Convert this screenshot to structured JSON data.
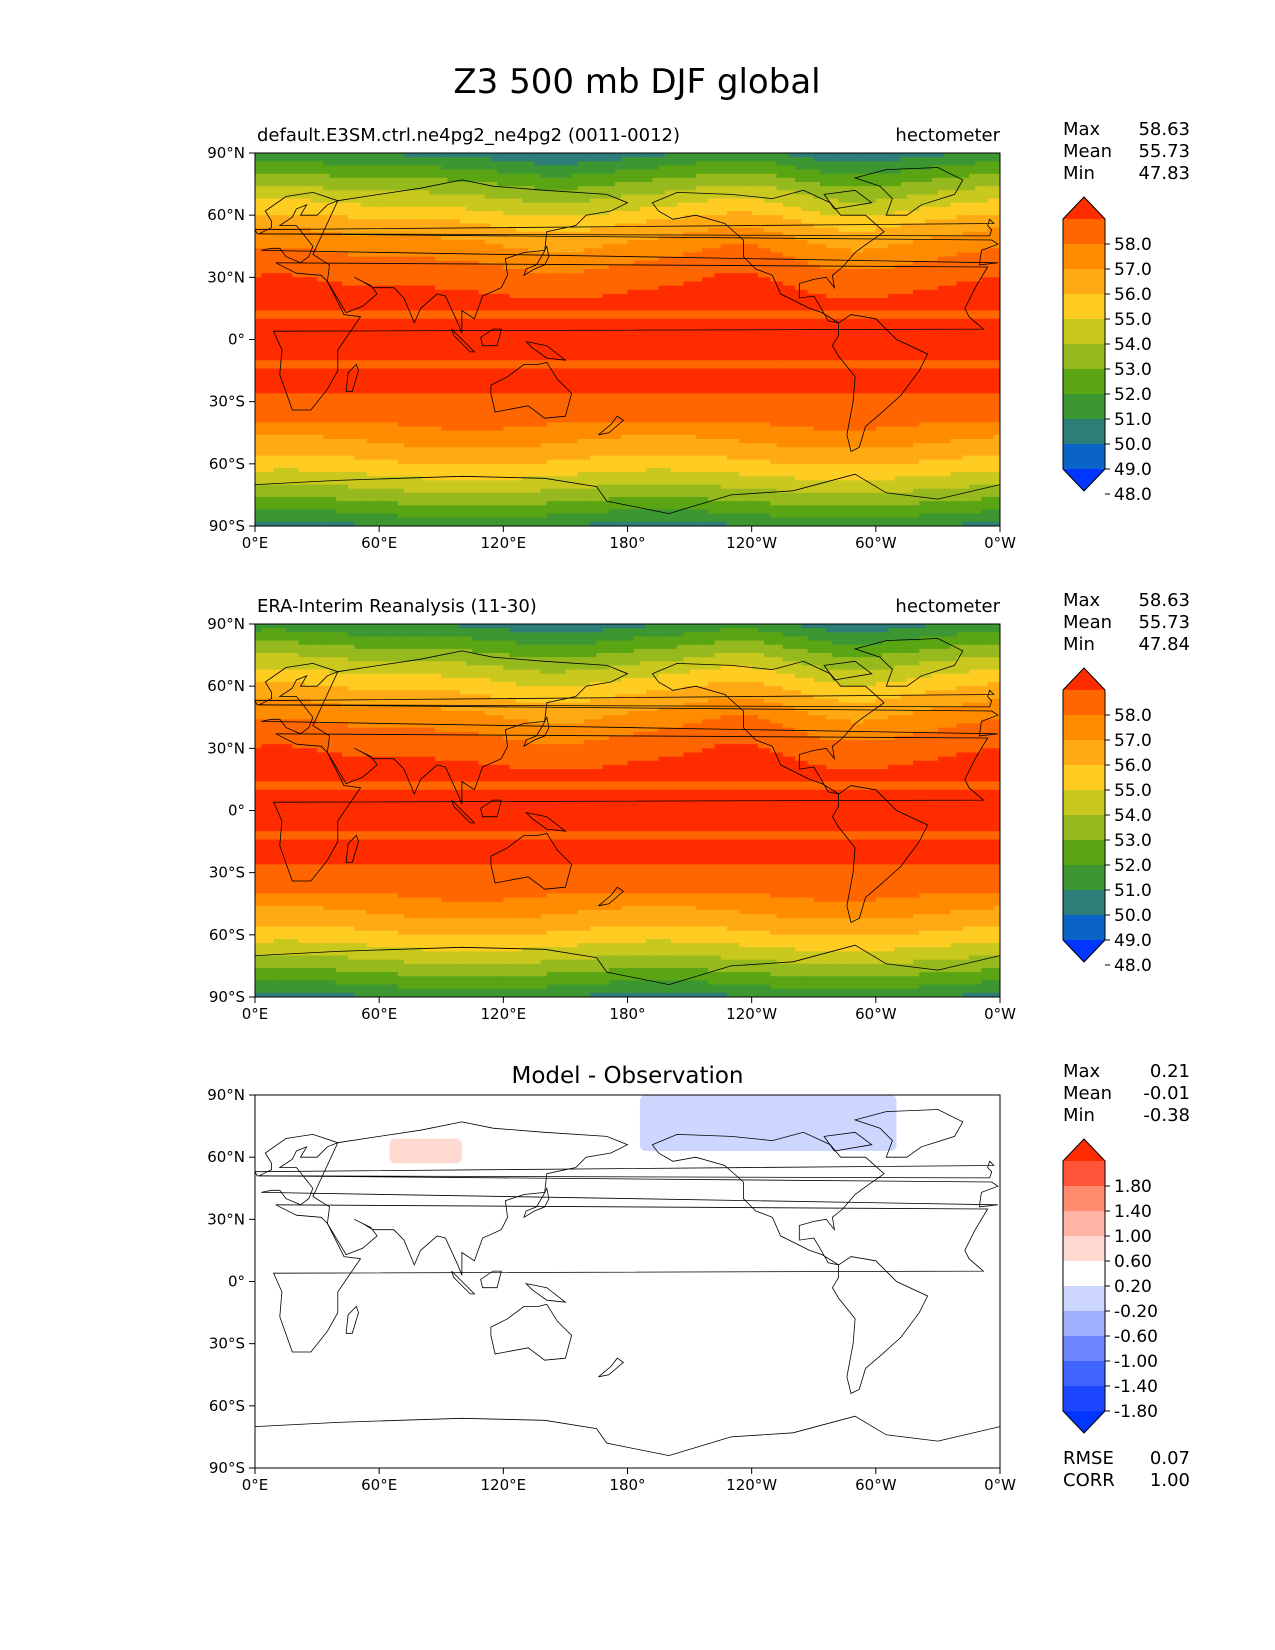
{
  "chart_data": {
    "type": "heatmap",
    "title": "Z3 500 mb DJF global",
    "x_ticks": [
      "0°E",
      "60°E",
      "120°E",
      "180°",
      "120°W",
      "60°W",
      "0°W"
    ],
    "y_ticks": [
      "90°N",
      "60°N",
      "30°N",
      "0°",
      "30°S",
      "60°S",
      "90°S"
    ],
    "x_range_deg_east": [
      0,
      360
    ],
    "y_range_deg_lat": [
      -90,
      90
    ],
    "panels": [
      {
        "id": "model",
        "left_title": "default.E3SM.ctrl.ne4pg2_ne4pg2 (0011-0012)",
        "right_title": "hectometer",
        "center_title": "",
        "stats": [
          {
            "label": "Max",
            "value": "58.63"
          },
          {
            "label": "Mean",
            "value": "55.73"
          },
          {
            "label": "Min",
            "value": "47.83"
          }
        ],
        "colorbar_ticks": [
          "58.0",
          "57.0",
          "56.0",
          "55.0",
          "54.0",
          "53.0",
          "52.0",
          "51.0",
          "50.0",
          "49.0",
          "48.0"
        ],
        "colorbar_colors": [
          "#ff2c00",
          "#ff6600",
          "#ff8c00",
          "#ffaa14",
          "#ffcc22",
          "#c8c81e",
          "#96b91e",
          "#5aa514",
          "#3c9632",
          "#2d7d78",
          "#0a64c8",
          "#0036ff"
        ],
        "field": {
          "kind": "z500",
          "bias": 0.0
        }
      },
      {
        "id": "obs",
        "left_title": "ERA-Interim Reanalysis (11-30)",
        "right_title": "hectometer",
        "center_title": "",
        "stats": [
          {
            "label": "Max",
            "value": "58.63"
          },
          {
            "label": "Mean",
            "value": "55.73"
          },
          {
            "label": "Min",
            "value": "47.84"
          }
        ],
        "colorbar_ticks": [
          "58.0",
          "57.0",
          "56.0",
          "55.0",
          "54.0",
          "53.0",
          "52.0",
          "51.0",
          "50.0",
          "49.0",
          "48.0"
        ],
        "colorbar_colors": [
          "#ff2c00",
          "#ff6600",
          "#ff8c00",
          "#ffaa14",
          "#ffcc22",
          "#c8c81e",
          "#96b91e",
          "#5aa514",
          "#3c9632",
          "#2d7d78",
          "#0a64c8",
          "#0036ff"
        ],
        "field": {
          "kind": "z500",
          "bias": 0.0
        }
      },
      {
        "id": "diff",
        "left_title": "",
        "right_title": "",
        "center_title": "Model - Observation",
        "stats": [
          {
            "label": "Max",
            "value": "0.21"
          },
          {
            "label": "Mean",
            "value": "-0.01"
          },
          {
            "label": "Min",
            "value": "-0.38"
          }
        ],
        "colorbar_ticks": [
          "1.80",
          "1.40",
          "1.00",
          "0.60",
          "0.20",
          "-0.20",
          "-0.60",
          "-1.00",
          "-1.40",
          "-1.80"
        ],
        "colorbar_colors": [
          "#ff2c00",
          "#ff5438",
          "#ff8a6e",
          "#ffb4a4",
          "#ffdad2",
          "#ffffff",
          "#cdd6ff",
          "#a0b0ff",
          "#6e87ff",
          "#4164ff",
          "#1e46ff",
          "#0036ff"
        ],
        "bottom_stats": [
          {
            "label": "RMSE",
            "value": "0.07"
          },
          {
            "label": "CORR",
            "value": "1.00"
          }
        ],
        "anomalies": [
          {
            "sign": "positive",
            "value": 0.2,
            "lon_range_deg_east": [
              65,
              100
            ],
            "lat_range_deg": [
              57,
              69
            ],
            "color": "#ffdad2"
          },
          {
            "sign": "negative",
            "value": -0.3,
            "lon_range_deg_east": [
              186,
              310
            ],
            "lat_range_deg": [
              63,
              90
            ],
            "color": "#cdd6ff"
          }
        ]
      }
    ]
  }
}
